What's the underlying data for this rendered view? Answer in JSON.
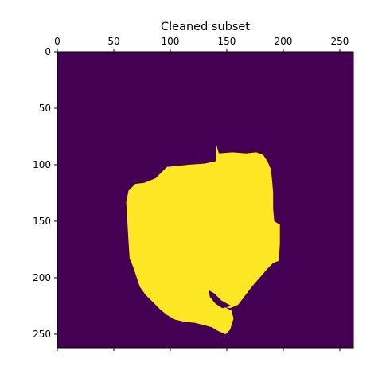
{
  "chart_data": {
    "type": "heatmap",
    "title": "Cleaned subset",
    "xlabel": "",
    "ylabel": "",
    "x_axis_position": "top",
    "y_axis_inverted": true,
    "grid": false,
    "legend": "none",
    "xlim": [
      0,
      262
    ],
    "ylim": [
      262,
      0
    ],
    "x_ticks": [
      0,
      50,
      100,
      150,
      200,
      250
    ],
    "y_ticks": [
      0,
      50,
      100,
      150,
      200,
      250
    ],
    "x_tick_labels": [
      "0",
      "50",
      "100",
      "150",
      "200",
      "250"
    ],
    "y_tick_labels": [
      "0",
      "50",
      "100",
      "150",
      "200",
      "250"
    ],
    "colormap": "viridis",
    "value_range": [
      0,
      1
    ],
    "background_value": 0,
    "background_color": "#440154",
    "foreground_value": 1,
    "foreground_color": "#fde725",
    "mask_outline": [
      [
        141,
        83
      ],
      [
        143,
        90
      ],
      [
        155,
        89
      ],
      [
        167,
        90
      ],
      [
        176,
        89
      ],
      [
        182,
        91
      ],
      [
        186,
        97
      ],
      [
        189,
        104
      ],
      [
        190,
        113
      ],
      [
        191,
        125
      ],
      [
        191,
        139
      ],
      [
        192,
        150
      ],
      [
        197,
        153
      ],
      [
        197,
        170
      ],
      [
        196,
        185
      ],
      [
        191,
        187
      ],
      [
        186,
        192
      ],
      [
        180,
        199
      ],
      [
        173,
        207
      ],
      [
        166,
        216
      ],
      [
        160,
        224
      ],
      [
        153,
        227
      ],
      [
        148,
        226
      ],
      [
        154,
        229
      ],
      [
        156,
        236
      ],
      [
        153,
        246
      ],
      [
        149,
        250
      ],
      [
        142,
        247
      ],
      [
        137,
        244
      ],
      [
        130,
        242
      ],
      [
        122,
        240
      ],
      [
        112,
        239
      ],
      [
        104,
        237
      ],
      [
        97,
        233
      ],
      [
        91,
        228
      ],
      [
        85,
        222
      ],
      [
        78,
        215
      ],
      [
        73,
        208
      ],
      [
        70,
        199
      ],
      [
        67,
        190
      ],
      [
        64,
        183
      ],
      [
        63,
        168
      ],
      [
        62,
        150
      ],
      [
        61,
        133
      ],
      [
        63,
        123
      ],
      [
        69,
        117
      ],
      [
        77,
        116
      ],
      [
        87,
        112
      ],
      [
        93,
        106
      ],
      [
        97,
        102
      ],
      [
        107,
        101
      ],
      [
        116,
        100
      ],
      [
        130,
        99
      ],
      [
        140,
        97
      ],
      [
        141,
        83
      ]
    ],
    "mask_holes": [
      [
        [
          134,
          211
        ],
        [
          139,
          214
        ],
        [
          145,
          220
        ],
        [
          154,
          225
        ],
        [
          146,
          227
        ],
        [
          140,
          223
        ],
        [
          135,
          217
        ],
        [
          134,
          211
        ]
      ]
    ]
  }
}
